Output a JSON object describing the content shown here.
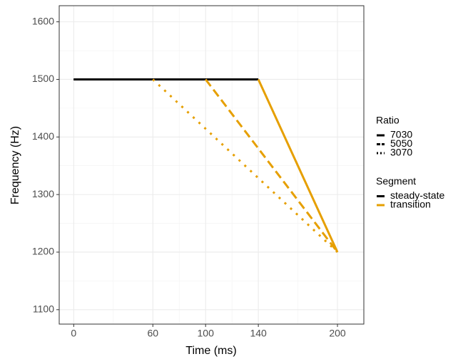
{
  "chart_data": {
    "type": "line",
    "x_label": "Time (ms)",
    "y_label": "Frequency (Hz)",
    "xlim": [
      -11,
      220
    ],
    "ylim": [
      1075,
      1628
    ],
    "xticks": [
      0,
      60,
      100,
      140,
      200
    ],
    "yticks": [
      1100,
      1200,
      1300,
      1400,
      1500,
      1600
    ],
    "grid": true,
    "series": [
      {
        "x": [
          0,
          140
        ],
        "values": [
          1500,
          1500
        ],
        "color": "#000000",
        "linetype": "solid"
      },
      {
        "x": [
          140,
          200
        ],
        "values": [
          1500,
          1200
        ],
        "color": "#E69F00",
        "linetype": "solid"
      },
      {
        "x": [
          0,
          100
        ],
        "values": [
          1500,
          1500
        ],
        "color": "#000000",
        "linetype": "dashed"
      },
      {
        "x": [
          100,
          200
        ],
        "values": [
          1500,
          1200
        ],
        "color": "#E69F00",
        "linetype": "dashed"
      },
      {
        "x": [
          0,
          60
        ],
        "values": [
          1500,
          1500
        ],
        "color": "#000000",
        "linetype": "dotted"
      },
      {
        "x": [
          60,
          200
        ],
        "values": [
          1500,
          1200
        ],
        "color": "#E69F00",
        "linetype": "dotted"
      }
    ],
    "legends": [
      {
        "title": "Ratio",
        "items": [
          "7030",
          "5050",
          "3070"
        ],
        "linetypes": [
          "solid",
          "dashed",
          "dotted"
        ],
        "color": "#000000"
      },
      {
        "title": "Segment",
        "items": [
          "steady-state",
          "transition"
        ],
        "colors": [
          "#000000",
          "#E69F00"
        ],
        "linetype": "solid"
      }
    ]
  }
}
